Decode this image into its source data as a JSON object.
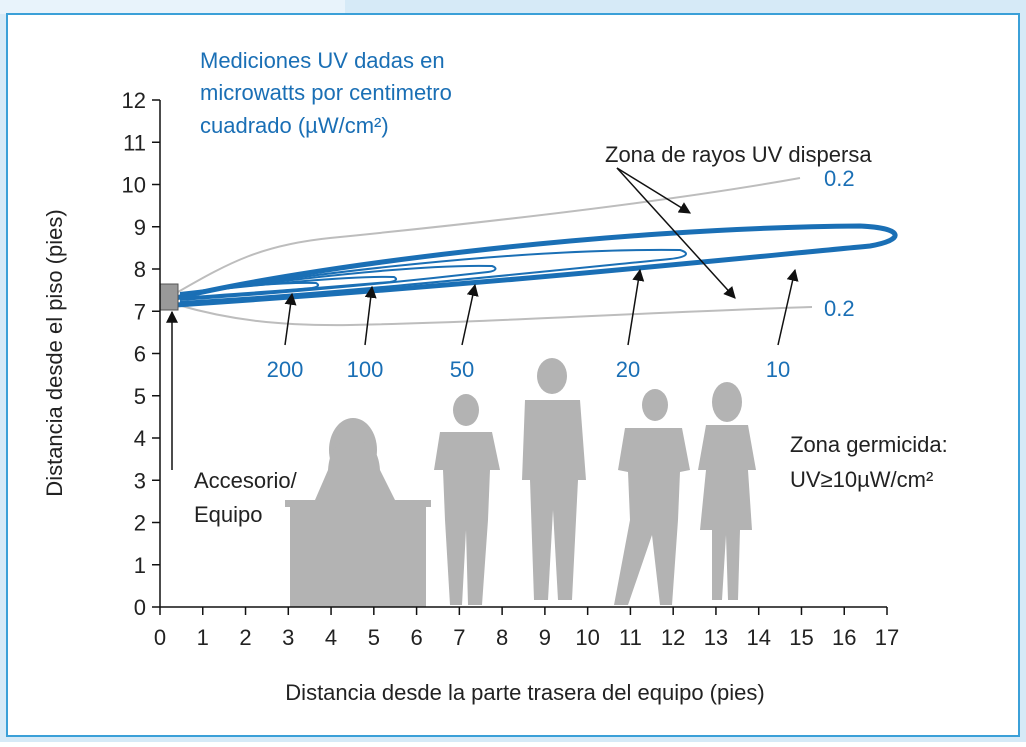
{
  "chart_data": {
    "type": "contour",
    "title_lines": [
      "Mediciones UV dadas en",
      "microwatts por centimetro",
      "cuadrado (µW/cm²)"
    ],
    "xlabel": "Distancia desde la parte trasera del equipo (pies)",
    "ylabel": "Distancia desde el piso (pies)",
    "xlim": [
      0,
      17
    ],
    "ylim": [
      0,
      12
    ],
    "xticks": [
      0,
      1,
      2,
      3,
      4,
      5,
      6,
      7,
      8,
      9,
      10,
      11,
      12,
      13,
      14,
      15,
      16,
      17
    ],
    "yticks": [
      0,
      1,
      2,
      3,
      4,
      5,
      6,
      7,
      8,
      9,
      10,
      11,
      12
    ],
    "contour_levels": [
      200,
      100,
      50,
      20,
      10
    ],
    "outer_levels": [
      0.2,
      0.2
    ],
    "scatter_zone_label": "Zona de rayos UV dispersa",
    "fixture_label": [
      "Accesorio/",
      "Equipo"
    ],
    "germicidal_label": [
      "Zona germicida:",
      "UV≥10µW/cm²"
    ],
    "color": "#1a6fb5"
  }
}
